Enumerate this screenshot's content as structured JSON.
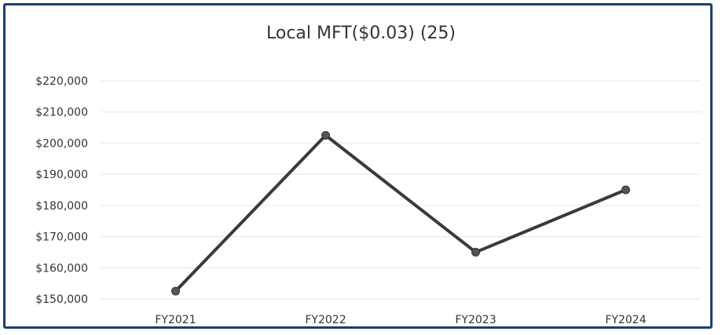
{
  "chart_data": {
    "type": "line",
    "title": "Local MFT($0.03) (25)",
    "categories": [
      "FY2021",
      "FY2022",
      "FY2023",
      "FY2024"
    ],
    "series": [
      {
        "values": [
          152500,
          202500,
          165000,
          185000
        ]
      }
    ],
    "ylim": [
      150000,
      220000
    ],
    "yticks": [
      150000,
      160000,
      170000,
      180000,
      190000,
      200000,
      210000,
      220000
    ],
    "ytick_labels": [
      "$150,000",
      "$160,000",
      "$170,000",
      "$180,000",
      "$190,000",
      "$200,000",
      "$210,000",
      "$220,000"
    ],
    "grid": true,
    "legend": "none",
    "colors": {
      "line": "#3a3a3a",
      "marker": "#555555",
      "grid": "#e6e6e6",
      "border": "#1f3f66"
    }
  }
}
